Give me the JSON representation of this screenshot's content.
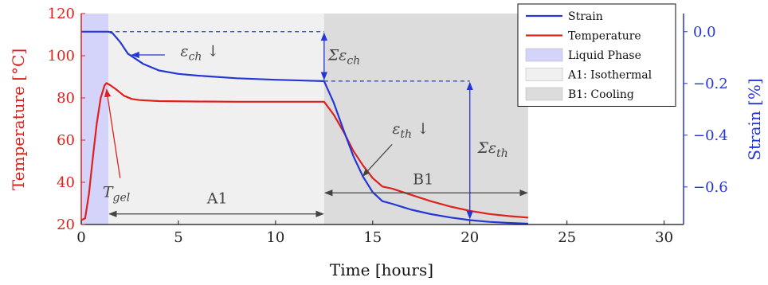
{
  "chart_data": {
    "type": "line",
    "xlabel": "Time [hours]",
    "ylabel_left": "Temperature [°C]",
    "ylabel_right": "Strain [%]",
    "xlim": [
      0,
      31
    ],
    "ylim_left": [
      20,
      120
    ],
    "ylim_right": [
      -0.745,
      0.07
    ],
    "x_ticks": [
      0,
      5,
      10,
      15,
      20,
      25,
      30
    ],
    "y_left_ticks": [
      20,
      40,
      60,
      80,
      100,
      120
    ],
    "y_right_ticks": [
      0.0,
      -0.2,
      -0.4,
      -0.6
    ],
    "y_right_tick_labels": [
      "0.0",
      "−0.2",
      "−0.4",
      "−0.6"
    ],
    "grid": false,
    "legend_position": "top-right",
    "legend": [
      {
        "label": "Strain",
        "kind": "line",
        "color": "#2436d6"
      },
      {
        "label": "Temperature",
        "kind": "line",
        "color": "#e0201c"
      },
      {
        "label": "Liquid Phase",
        "kind": "patch",
        "color": "#d4d4fa"
      },
      {
        "label": "A1: Isothermal",
        "kind": "patch",
        "color": "#f0f0f0"
      },
      {
        "label": "B1: Cooling",
        "kind": "patch",
        "color": "#dcdcdc"
      }
    ],
    "regions": [
      {
        "name": "Liquid Phase",
        "x": [
          0,
          1.4
        ],
        "color": "#d4d4fa"
      },
      {
        "name": "A1: Isothermal",
        "x": [
          1.4,
          12.5
        ],
        "color": "#f0f0f0"
      },
      {
        "name": "B1: Cooling",
        "x": [
          12.5,
          23
        ],
        "color": "#dcdcdc"
      }
    ],
    "series": [
      {
        "name": "Temperature",
        "axis": "left",
        "color": "#e0201c",
        "x": [
          0,
          0.2,
          0.4,
          0.6,
          0.8,
          1.0,
          1.2,
          1.3,
          1.5,
          1.8,
          2.2,
          2.6,
          3,
          4,
          6,
          8,
          10,
          12.5,
          13,
          13.5,
          14,
          14.5,
          15,
          15.5,
          16,
          17,
          18,
          19,
          20,
          21,
          22,
          23
        ],
        "y": [
          22,
          23,
          35,
          52,
          68,
          80,
          86,
          87,
          86,
          84,
          81,
          79.5,
          79,
          78.5,
          78.3,
          78.2,
          78.2,
          78.2,
          72,
          64,
          55,
          48,
          42,
          38,
          37,
          34,
          31,
          28.5,
          26.5,
          25,
          24,
          23.3
        ]
      },
      {
        "name": "Strain",
        "axis": "right",
        "color": "#2436d6",
        "x": [
          0,
          1.4,
          1.6,
          2.0,
          2.4,
          2.8,
          3.2,
          4,
          5,
          6,
          8,
          10,
          12.5,
          13,
          13.5,
          14,
          14.5,
          15,
          15.5,
          16,
          17,
          18,
          19,
          20,
          21,
          22,
          23
        ],
        "y": [
          0.0,
          0.0,
          -0.005,
          -0.04,
          -0.085,
          -0.105,
          -0.125,
          -0.15,
          -0.163,
          -0.17,
          -0.18,
          -0.186,
          -0.191,
          -0.275,
          -0.38,
          -0.48,
          -0.56,
          -0.62,
          -0.655,
          -0.665,
          -0.688,
          -0.705,
          -0.718,
          -0.728,
          -0.735,
          -0.739,
          -0.742
        ]
      }
    ],
    "annotations": {
      "eps_ch": "ε_ch ↓",
      "sum_eps_ch": "Σε_ch",
      "eps_th": "ε_th ↓",
      "sum_eps_th": "Σε_th",
      "t_gel": "T_gel",
      "a1": "A1",
      "b1": "B1"
    }
  }
}
